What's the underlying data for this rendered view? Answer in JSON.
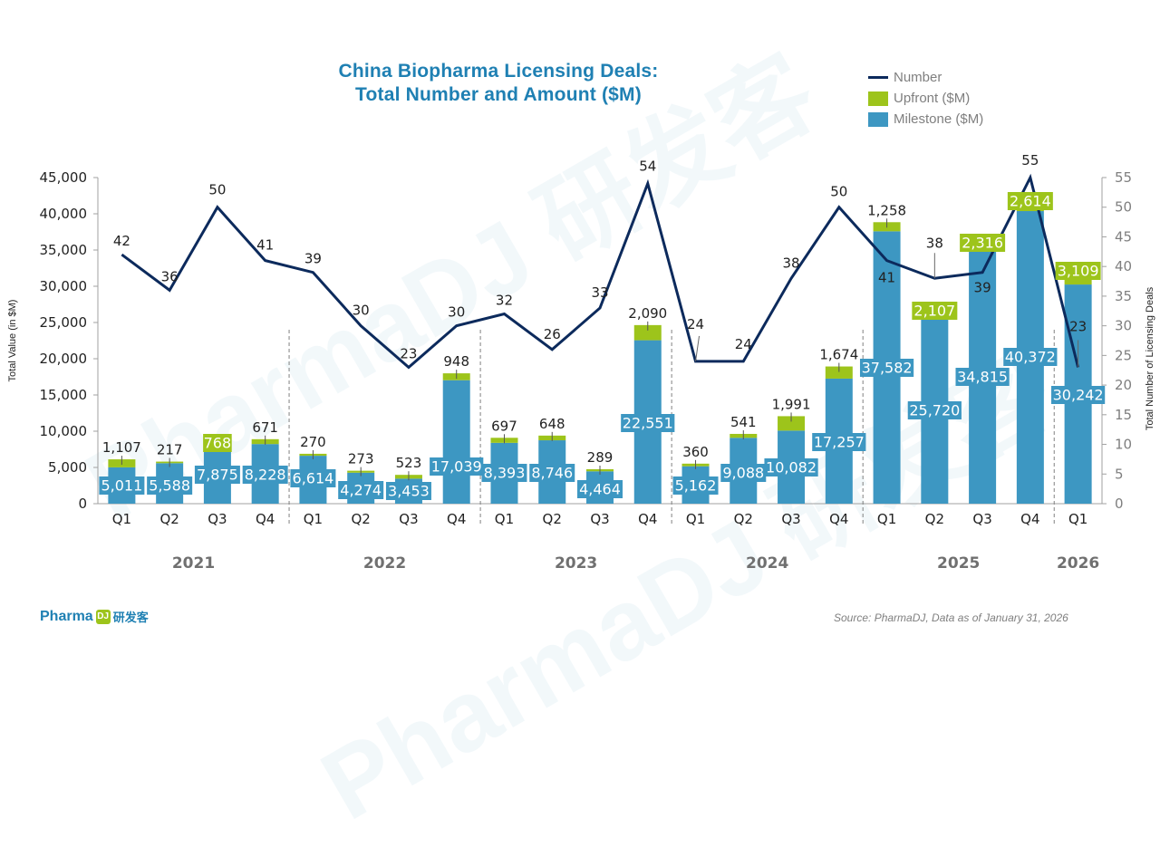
{
  "watermark": {
    "text": "PharmaDJ 研发客"
  },
  "logo": {
    "text": "Pharma",
    "badge": "DJ",
    "cn": "研发客"
  },
  "source": "Source: PharmaDJ, Data as of January 31, 2026",
  "colors": {
    "milestone": "#3d97c2",
    "upfront": "#9dc41b",
    "number": "#0c2a5c",
    "title": "#1f80b3"
  },
  "chart_data": {
    "type": "bar",
    "title": "China Biopharma Licensing Deals:",
    "subtitle": "Total Number and Amount ($M)",
    "ylabel": "Total Value (in $M)",
    "y2label": "Total Number of Licensing Deals",
    "ylim": [
      0,
      45000
    ],
    "y2lim": [
      0,
      55
    ],
    "yticks": [
      "0",
      "5,000",
      "10,000",
      "15,000",
      "20,000",
      "25,000",
      "30,000",
      "35,000",
      "40,000",
      "45,000"
    ],
    "y2ticks": [
      "0",
      "5",
      "10",
      "15",
      "20",
      "25",
      "30",
      "35",
      "40",
      "45",
      "50",
      "55"
    ],
    "legend": [
      "Number",
      "Upfront ($M)",
      "Milestone ($M)"
    ],
    "legend_position": "top-right",
    "categories": [
      "Q1",
      "Q2",
      "Q3",
      "Q4",
      "Q1",
      "Q2",
      "Q3",
      "Q4",
      "Q1",
      "Q2",
      "Q3",
      "Q4",
      "Q1",
      "Q2",
      "Q3",
      "Q4",
      "Q1",
      "Q2",
      "Q3",
      "Q4",
      "Q1"
    ],
    "years": [
      {
        "label": "2021",
        "quarters": 4
      },
      {
        "label": "2022",
        "quarters": 4
      },
      {
        "label": "2023",
        "quarters": 4
      },
      {
        "label": "2024",
        "quarters": 4
      },
      {
        "label": "2025",
        "quarters": 4
      },
      {
        "label": "2026",
        "quarters": 1
      }
    ],
    "series": [
      {
        "name": "Milestone ($M)",
        "type": "bar-stacked",
        "values": [
          5011,
          5588,
          7875,
          8228,
          6614,
          4274,
          3453,
          17039,
          8393,
          8746,
          4464,
          22551,
          5162,
          9088,
          10082,
          17257,
          37582,
          25720,
          34815,
          40372,
          30242
        ],
        "labels": [
          "5,011",
          "5,588",
          "7,875",
          "8,228",
          "6,614",
          "4,274",
          "3,453",
          "17,039",
          "8,393",
          "8,746",
          "4,464",
          "22,551",
          "5,162",
          "9,088",
          "10,082",
          "17,257",
          "37,582",
          "25,720",
          "34,815",
          "40,372",
          "30,242"
        ]
      },
      {
        "name": "Upfront ($M)",
        "type": "bar-stacked",
        "values": [
          1107,
          217,
          768,
          671,
          270,
          273,
          523,
          948,
          697,
          648,
          289,
          2090,
          360,
          541,
          1991,
          1674,
          1258,
          2107,
          2316,
          2614,
          3109
        ],
        "labels": [
          "1,107",
          "217",
          "768",
          "671",
          "270",
          "273",
          "523",
          "948",
          "697",
          "648",
          "289",
          "2,090",
          "360",
          "541",
          "1,991",
          "1,674",
          "1,258",
          "2,107",
          "2,316",
          "2,614",
          "3,109"
        ]
      },
      {
        "name": "Number",
        "type": "line",
        "axis": "right",
        "values": [
          42,
          36,
          50,
          41,
          39,
          30,
          23,
          30,
          32,
          26,
          33,
          54,
          24,
          24,
          38,
          50,
          41,
          38,
          39,
          55,
          23
        ]
      }
    ]
  }
}
